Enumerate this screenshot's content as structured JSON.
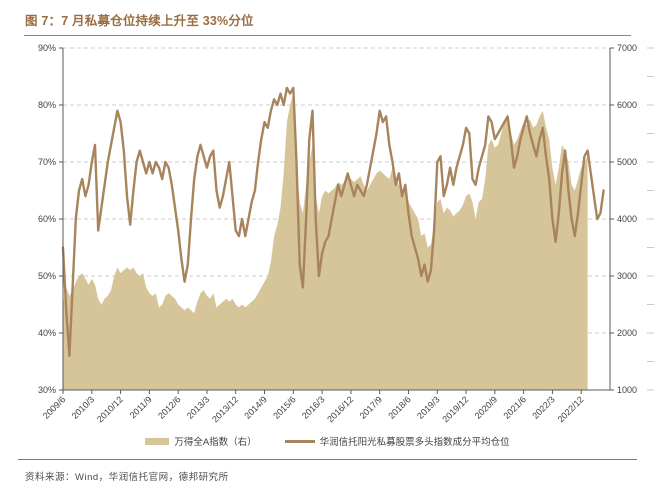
{
  "header": {
    "title": "图 7：7 月私募仓位持续上升至 33%分位"
  },
  "footer": {
    "source": "资料来源：Wind，华润信托官网，德邦研究所"
  },
  "colors": {
    "title": "#9a6e41",
    "rule": "#a08454",
    "line": "#a8845c",
    "area": "#d7c59a",
    "grid": "#cccccc",
    "axis": "#595959",
    "tick_text": "#404040",
    "minor_dash": "#c8c8c8"
  },
  "chart_data": {
    "type": "area",
    "subtype": "dual-axis line + area, monthly time series",
    "x_start": "2009/6",
    "x_frequency": "monthly",
    "x_domain_months": 171,
    "x_tick_every_months": 9,
    "x_tick_labels": [
      "2009/6",
      "2010/3",
      "2010/12",
      "2011/9",
      "2012/6",
      "2013/3",
      "2013/12",
      "2014/9",
      "2015/6",
      "2016/3",
      "2016/12",
      "2017/9",
      "2018/6",
      "2019/3",
      "2019/12",
      "2020/9",
      "2021/6",
      "2022/3",
      "2022/12"
    ],
    "y_left": {
      "min": 30,
      "max": 90,
      "step": 10,
      "unit": "%",
      "tick_labels": [
        "30%",
        "40%",
        "50%",
        "60%",
        "70%",
        "80%",
        "90%"
      ]
    },
    "y_right": {
      "min": 1000,
      "max": 7000,
      "step": 1000,
      "tick_labels": [
        "1000",
        "2000",
        "3000",
        "4000",
        "5000",
        "6000",
        "7000"
      ]
    },
    "grid": "horizontal dashed at left-axis majors",
    "legend_position": "bottom-center",
    "series": [
      {
        "name": "万得全A指数（右）",
        "type": "area",
        "axis": "right",
        "color": "#d7c59a",
        "start": "2009/6",
        "end": "2023/2",
        "values": [
          2500,
          2800,
          2650,
          2750,
          2900,
          3000,
          3050,
          2950,
          2850,
          2950,
          2850,
          2600,
          2500,
          2600,
          2650,
          2750,
          3000,
          3150,
          3050,
          3100,
          3150,
          3100,
          3150,
          3050,
          3000,
          3050,
          2800,
          2700,
          2650,
          2700,
          2450,
          2500,
          2650,
          2700,
          2650,
          2600,
          2500,
          2450,
          2400,
          2450,
          2400,
          2350,
          2550,
          2700,
          2750,
          2650,
          2600,
          2700,
          2450,
          2500,
          2550,
          2600,
          2550,
          2600,
          2500,
          2450,
          2500,
          2450,
          2500,
          2550,
          2600,
          2700,
          2800,
          2900,
          3000,
          3250,
          3700,
          3900,
          4200,
          4800,
          5700,
          6000,
          6200,
          5000,
          4300,
          4100,
          4600,
          5000,
          5300,
          4400,
          4100,
          4400,
          4500,
          4450,
          4500,
          4550,
          4650,
          4600,
          4650,
          4800,
          4700,
          4650,
          4700,
          4750,
          4600,
          4500,
          4600,
          4700,
          4800,
          4850,
          4800,
          4750,
          4700,
          4900,
          4750,
          4600,
          4500,
          4550,
          4300,
          4200,
          4100,
          4000,
          3700,
          3750,
          3500,
          3550,
          3900,
          4300,
          4350,
          4100,
          4200,
          4150,
          4050,
          4100,
          4150,
          4250,
          4400,
          4450,
          4300,
          4000,
          4300,
          4350,
          4700,
          5300,
          5400,
          5250,
          5300,
          5500,
          5700,
          5750,
          5500,
          5300,
          5400,
          5550,
          5700,
          5650,
          5750,
          5600,
          5650,
          5800,
          5900,
          5600,
          5400,
          4900,
          4600,
          4900,
          5300,
          5200,
          5000,
          4600,
          4500,
          4700,
          4900,
          5000,
          5100
        ]
      },
      {
        "name": "华润信托阳光私募股票多头指数成分平均仓位",
        "type": "line",
        "axis": "left",
        "color": "#a8845c",
        "start": "2009/6",
        "end": "2023/7",
        "values": [
          55,
          44,
          36,
          48,
          60,
          65,
          67,
          64,
          66,
          70,
          73,
          58,
          62,
          66,
          70,
          73,
          76,
          79,
          77,
          72,
          64,
          59,
          65,
          70,
          72,
          70,
          68,
          70,
          68,
          70,
          69,
          67,
          70,
          69,
          66,
          62,
          58,
          53,
          49,
          52,
          60,
          67,
          71,
          73,
          71,
          69,
          71,
          72,
          65,
          62,
          64,
          67,
          70,
          64,
          58,
          57,
          60,
          57,
          60,
          63,
          65,
          70,
          74,
          77,
          76,
          79,
          81,
          80,
          82,
          80,
          83,
          82,
          83,
          70,
          52,
          48,
          60,
          74,
          79,
          60,
          50,
          54,
          56,
          57,
          60,
          63,
          66,
          64,
          66,
          68,
          66,
          64,
          66,
          65,
          64,
          66,
          69,
          72,
          75,
          79,
          77,
          78,
          73,
          70,
          66,
          68,
          64,
          66,
          61,
          57,
          55,
          53,
          50,
          52,
          49,
          51,
          58,
          70,
          71,
          64,
          66,
          69,
          66,
          69,
          71,
          73,
          76,
          75,
          67,
          66,
          69,
          71,
          73,
          78,
          77,
          74,
          75,
          76,
          77,
          78,
          74,
          69,
          71,
          74,
          76,
          78,
          75,
          73,
          71,
          74,
          76,
          71,
          67,
          60,
          56,
          61,
          68,
          72,
          65,
          60,
          57,
          61,
          66,
          71,
          72,
          68,
          64,
          60,
          61,
          65
        ]
      }
    ]
  }
}
